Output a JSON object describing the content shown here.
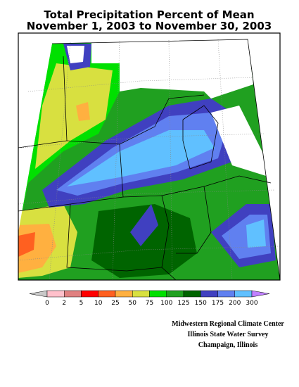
{
  "title": [
    "Total Precipitation Percent of Mean",
    "November 1, 2003 to November 30, 2003"
  ],
  "legend": {
    "colors": [
      "#c8c8c8",
      "#ffc0cb",
      "#e08080",
      "#ff0000",
      "#ff6020",
      "#ffb040",
      "#d8e040",
      "#00e000",
      "#20a020",
      "#006400",
      "#4040c0",
      "#6080f0",
      "#60c0ff",
      "#c080ff"
    ],
    "labels": [
      0,
      2,
      5,
      10,
      25,
      50,
      75,
      100,
      125,
      150,
      175,
      200,
      300
    ]
  },
  "credits": [
    "Midwestern Regional Climate Center",
    "Illinois State Water Survey",
    "Champaign, Illinois"
  ]
}
